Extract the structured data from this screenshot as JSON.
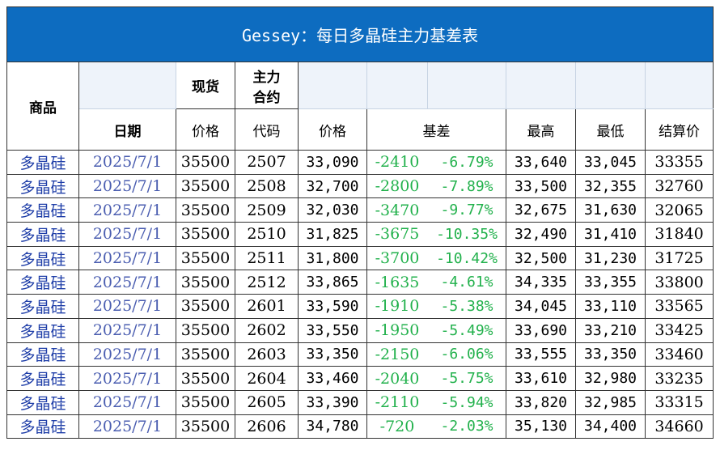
{
  "title": "Gessey：每日多晶硅主力基差表",
  "headers": {
    "product": "商品",
    "date": "日期",
    "spot": "现货",
    "spot_price": "价格",
    "main_contract": "主力\n合约",
    "main_line1": "主力",
    "main_line2": "合约",
    "code": "代码",
    "price": "价格",
    "basis": "基差",
    "high": "最高",
    "low": "最低",
    "settle": "结算价"
  },
  "rows": [
    {
      "name": "多晶硅",
      "date": "2025/7/1",
      "spot": "35500",
      "code": "2507",
      "price": "33,090",
      "basis": "-2410",
      "pct": "-6.79%",
      "high": "33,640",
      "low": "33,045",
      "settle": "33355"
    },
    {
      "name": "多晶硅",
      "date": "2025/7/1",
      "spot": "35500",
      "code": "2508",
      "price": "32,700",
      "basis": "-2800",
      "pct": "-7.89%",
      "high": "33,500",
      "low": "32,355",
      "settle": "32760"
    },
    {
      "name": "多晶硅",
      "date": "2025/7/1",
      "spot": "35500",
      "code": "2509",
      "price": "32,030",
      "basis": "-3470",
      "pct": "-9.77%",
      "high": "32,675",
      "low": "31,630",
      "settle": "32065"
    },
    {
      "name": "多晶硅",
      "date": "2025/7/1",
      "spot": "35500",
      "code": "2510",
      "price": "31,825",
      "basis": "-3675",
      "pct": "-10.35%",
      "high": "32,490",
      "low": "31,410",
      "settle": "31840"
    },
    {
      "name": "多晶硅",
      "date": "2025/7/1",
      "spot": "35500",
      "code": "2511",
      "price": "31,800",
      "basis": "-3700",
      "pct": "-10.42%",
      "high": "32,500",
      "low": "31,230",
      "settle": "31725"
    },
    {
      "name": "多晶硅",
      "date": "2025/7/1",
      "spot": "35500",
      "code": "2512",
      "price": "33,865",
      "basis": "-1635",
      "pct": "-4.61%",
      "high": "34,335",
      "low": "33,355",
      "settle": "33800"
    },
    {
      "name": "多晶硅",
      "date": "2025/7/1",
      "spot": "35500",
      "code": "2601",
      "price": "33,590",
      "basis": "-1910",
      "pct": "-5.38%",
      "high": "34,045",
      "low": "33,110",
      "settle": "33565"
    },
    {
      "name": "多晶硅",
      "date": "2025/7/1",
      "spot": "35500",
      "code": "2602",
      "price": "33,550",
      "basis": "-1950",
      "pct": "-5.49%",
      "high": "33,690",
      "low": "33,210",
      "settle": "33425"
    },
    {
      "name": "多晶硅",
      "date": "2025/7/1",
      "spot": "35500",
      "code": "2603",
      "price": "33,350",
      "basis": "-2150",
      "pct": "-6.06%",
      "high": "33,555",
      "low": "33,350",
      "settle": "33460"
    },
    {
      "name": "多晶硅",
      "date": "2025/7/1",
      "spot": "35500",
      "code": "2604",
      "price": "33,460",
      "basis": "-2040",
      "pct": "-5.75%",
      "high": "33,610",
      "low": "32,980",
      "settle": "33235"
    },
    {
      "name": "多晶硅",
      "date": "2025/7/1",
      "spot": "35500",
      "code": "2605",
      "price": "33,390",
      "basis": "-2110",
      "pct": "-5.94%",
      "high": "33,820",
      "low": "32,985",
      "settle": "33315"
    },
    {
      "name": "多晶硅",
      "date": "2025/7/1",
      "spot": "35500",
      "code": "2606",
      "price": "34,780",
      "basis": "-720",
      "pct": "-2.03%",
      "high": "35,130",
      "low": "34,400",
      "settle": "34660"
    }
  ],
  "colors": {
    "title_bg": "#0d6cc0",
    "basis_green": "#22b14c",
    "name_blue": "#1f3ea8"
  }
}
